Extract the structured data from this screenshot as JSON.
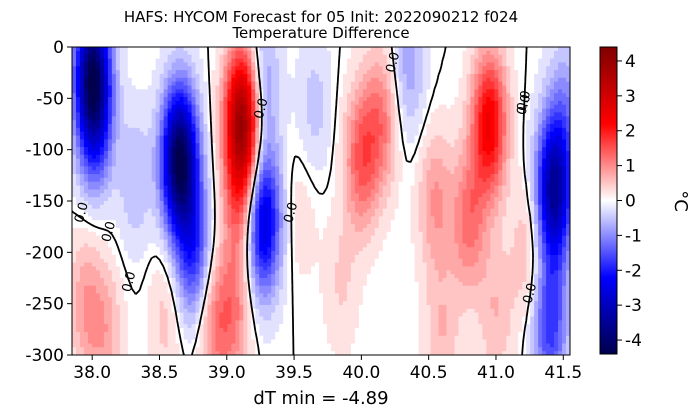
{
  "chart_data": {
    "type": "heatmap",
    "title": "HAFS: HYCOM Forecast for 05 Init: 2022090212 f024",
    "subtitle": "Temperature Difference",
    "xlabel": "dT min = -4.89",
    "ylabel": "",
    "colorbar_label": "°C",
    "colormap": "seismic",
    "xlim": [
      37.85,
      41.55
    ],
    "ylim": [
      -300,
      0
    ],
    "clim": [
      -4.4,
      4.4
    ],
    "xticks": [
      "38.0",
      "38.5",
      "39.0",
      "39.5",
      "40.0",
      "40.5",
      "41.0",
      "41.5"
    ],
    "yticks": [
      "0",
      "-50",
      "-100",
      "-150",
      "-200",
      "-250",
      "-300"
    ],
    "colorbar_ticks": [
      "4",
      "3",
      "2",
      "1",
      "0",
      "-1",
      "-2",
      "-3",
      "-4"
    ],
    "contour_level": "0.0",
    "features": [
      {
        "x": 38.0,
        "y": -20,
        "value": -3.2
      },
      {
        "x": 38.02,
        "y": -70,
        "value": -2.0
      },
      {
        "x": 37.95,
        "y": -250,
        "value": 0.8
      },
      {
        "x": 38.1,
        "y": -280,
        "value": 0.7
      },
      {
        "x": 38.32,
        "y": -130,
        "value": -0.6
      },
      {
        "x": 38.65,
        "y": -110,
        "value": -4.4
      },
      {
        "x": 38.75,
        "y": -200,
        "value": -1.8
      },
      {
        "x": 38.55,
        "y": -260,
        "value": 0.5
      },
      {
        "x": 38.9,
        "y": -270,
        "value": 1.0
      },
      {
        "x": 39.12,
        "y": -70,
        "value": 4.0
      },
      {
        "x": 39.1,
        "y": -150,
        "value": 1.2
      },
      {
        "x": 39.05,
        "y": -260,
        "value": 1.0
      },
      {
        "x": 39.27,
        "y": -170,
        "value": -2.8
      },
      {
        "x": 39.25,
        "y": -40,
        "value": -1.2
      },
      {
        "x": 39.65,
        "y": -60,
        "value": -0.5
      },
      {
        "x": 39.55,
        "y": -160,
        "value": 0.3
      },
      {
        "x": 40.0,
        "y": -110,
        "value": 1.4
      },
      {
        "x": 40.15,
        "y": -70,
        "value": 1.1
      },
      {
        "x": 40.35,
        "y": -20,
        "value": -0.8
      },
      {
        "x": 39.85,
        "y": -230,
        "value": 0.4
      },
      {
        "x": 40.55,
        "y": -150,
        "value": 0.9
      },
      {
        "x": 40.6,
        "y": -280,
        "value": 0.6
      },
      {
        "x": 40.95,
        "y": -75,
        "value": 2.4
      },
      {
        "x": 40.8,
        "y": -170,
        "value": 1.2
      },
      {
        "x": 41.0,
        "y": -260,
        "value": 0.6
      },
      {
        "x": 41.25,
        "y": -200,
        "value": 0.7
      },
      {
        "x": 41.43,
        "y": -140,
        "value": -3.5
      },
      {
        "x": 41.4,
        "y": -270,
        "value": -1.8
      },
      {
        "x": 41.52,
        "y": -60,
        "value": -0.8
      }
    ]
  }
}
